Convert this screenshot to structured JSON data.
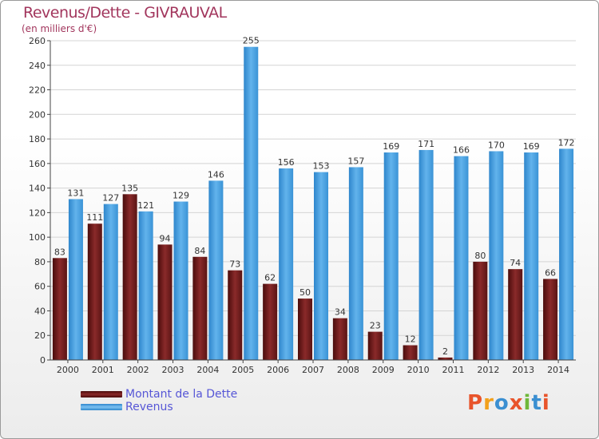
{
  "title": "Revenus/Dette - GIVRAUVAL",
  "subtitle": "(en milliers d'€)",
  "logo_letters": [
    "P",
    "r",
    "o",
    "x",
    "i",
    "t",
    "i"
  ],
  "logo_text": "Proxiti",
  "colors": {
    "dette": "#6a1a1a",
    "dette_light": "#8a2a2a",
    "revenus": "#4aa3e4",
    "revenus_light": "#6fb9ee",
    "title": "#a2365d",
    "axis_text": "#333333",
    "legend_text": "#5656d6",
    "logo": [
      "#e8542b",
      "#f2a01b",
      "#3b8fd1",
      "#e8542b",
      "#6fb83a",
      "#3b8fd1",
      "#e8542b"
    ]
  },
  "chart_data": {
    "type": "bar",
    "categories": [
      "2000",
      "2001",
      "2002",
      "2003",
      "2004",
      "2005",
      "2006",
      "2007",
      "2008",
      "2009",
      "2010",
      "2011",
      "2012",
      "2013",
      "2014"
    ],
    "series": [
      {
        "name": "Montant de la Dette",
        "values": [
          83,
          111,
          135,
          94,
          84,
          73,
          62,
          50,
          34,
          23,
          12,
          2,
          80,
          74,
          66
        ]
      },
      {
        "name": "Revenus",
        "values": [
          131,
          127,
          121,
          129,
          146,
          255,
          156,
          153,
          157,
          169,
          171,
          166,
          170,
          169,
          172
        ]
      }
    ],
    "ylim": [
      0,
      260
    ],
    "yticks": [
      0,
      20,
      40,
      60,
      80,
      100,
      120,
      140,
      160,
      180,
      200,
      220,
      240,
      260
    ],
    "grid": true,
    "legend_position": "bottom-left"
  }
}
